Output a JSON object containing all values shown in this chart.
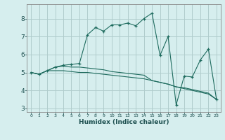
{
  "xlabel": "Humidex (Indice chaleur)",
  "bg_color": "#d6eeee",
  "grid_color": "#b0cccc",
  "line_color": "#1e6b5e",
  "xlim": [
    -0.5,
    23.5
  ],
  "ylim": [
    2.8,
    8.8
  ],
  "yticks": [
    3,
    4,
    5,
    6,
    7,
    8
  ],
  "xticks": [
    0,
    1,
    2,
    3,
    4,
    5,
    6,
    7,
    8,
    9,
    10,
    11,
    12,
    13,
    14,
    15,
    16,
    17,
    18,
    19,
    20,
    21,
    22,
    23
  ],
  "x": [
    0,
    1,
    2,
    3,
    4,
    5,
    6,
    7,
    8,
    9,
    10,
    11,
    12,
    13,
    14,
    15,
    16,
    17,
    18,
    19,
    20,
    21,
    22,
    23
  ],
  "line1": [
    5.0,
    4.9,
    5.1,
    5.3,
    5.4,
    5.45,
    5.5,
    7.1,
    7.5,
    7.3,
    7.65,
    7.65,
    7.75,
    7.6,
    8.0,
    8.3,
    5.95,
    7.0,
    3.2,
    4.8,
    4.75,
    5.7,
    6.3,
    3.5
  ],
  "line2": [
    5.0,
    4.9,
    5.1,
    5.1,
    5.1,
    5.05,
    5.0,
    5.0,
    4.95,
    4.9,
    4.85,
    4.8,
    4.75,
    4.7,
    4.65,
    4.55,
    4.45,
    4.35,
    4.2,
    4.15,
    4.05,
    3.95,
    3.85,
    3.5
  ],
  "line3": [
    5.0,
    4.9,
    5.1,
    5.3,
    5.35,
    5.3,
    5.3,
    5.25,
    5.2,
    5.15,
    5.05,
    5.0,
    4.95,
    4.9,
    4.85,
    4.55,
    4.45,
    4.35,
    4.2,
    4.1,
    4.0,
    3.9,
    3.8,
    3.5
  ]
}
